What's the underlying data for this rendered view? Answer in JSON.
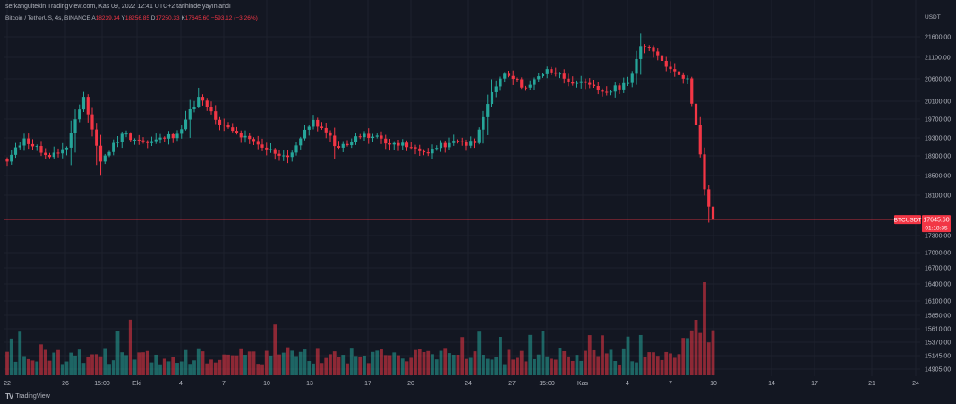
{
  "header": {
    "credit": "serkangultekin TradingView.com, Kas 09, 2022 12:41 UTC+2 tarihinde yayınlandı",
    "symbol_label": "Bitcoin / TetherUS, 4s, BINANCE",
    "ohlc": {
      "o_label": "A",
      "o": "18239.34",
      "h_label": "Y",
      "h": "18256.85",
      "l_label": "D",
      "l": "17250.33",
      "c_label": "K",
      "c": "17645.60",
      "change": "−593.12 (−3.26%)"
    }
  },
  "footer": {
    "logo_text": "TradingView",
    "logo_mark": "TV"
  },
  "colors": {
    "background": "#131722",
    "up": "#26a69a",
    "down": "#f23645",
    "grid": "#1e222d",
    "text": "#b2b5be",
    "price_line": "#f23645"
  },
  "chart_data": {
    "type": "candlestick",
    "symbol": "BTCUSDT",
    "currency": "USDT",
    "timeframe": "4s",
    "y_ticks": [
      "21600.00",
      "21100.00",
      "20600.00",
      "20100.00",
      "19700.00",
      "19300.00",
      "18900.00",
      "18500.00",
      "18100.00",
      "17300.00",
      "17000.00",
      "16700.00",
      "16400.00",
      "16100.00",
      "15850.00",
      "15610.00",
      "15370.00",
      "15145.00",
      "14905.00"
    ],
    "x_ticks": [
      "22",
      "26",
      "15:00",
      "Eki",
      "4",
      "7",
      "10",
      "13",
      "17",
      "20",
      "24",
      "27",
      "15:00",
      "Kas",
      "4",
      "7",
      "10",
      "14",
      "17",
      "21",
      "24"
    ],
    "price_label": {
      "symbol": "BTCUSDT",
      "price": "17645.60",
      "countdown": "01:18:35"
    },
    "key_points": [
      {
        "bar": 0,
        "price": 18900
      },
      {
        "bar": 4,
        "price": 19400
      },
      {
        "bar": 10,
        "price": 19000
      },
      {
        "bar": 14,
        "price": 19200
      },
      {
        "bar": 18,
        "price": 20300
      },
      {
        "bar": 22,
        "price": 18900
      },
      {
        "bar": 27,
        "price": 19500
      },
      {
        "bar": 33,
        "price": 19300
      },
      {
        "bar": 40,
        "price": 19500
      },
      {
        "bar": 45,
        "price": 20300
      },
      {
        "bar": 50,
        "price": 19700
      },
      {
        "bar": 60,
        "price": 19200
      },
      {
        "bar": 66,
        "price": 19000
      },
      {
        "bar": 72,
        "price": 19800
      },
      {
        "bar": 78,
        "price": 19200
      },
      {
        "bar": 84,
        "price": 19500
      },
      {
        "bar": 91,
        "price": 19300
      },
      {
        "bar": 98,
        "price": 19100
      },
      {
        "bar": 104,
        "price": 19300
      },
      {
        "bar": 110,
        "price": 19300
      },
      {
        "bar": 114,
        "price": 20400
      },
      {
        "bar": 117,
        "price": 20800
      },
      {
        "bar": 122,
        "price": 20500
      },
      {
        "bar": 127,
        "price": 20900
      },
      {
        "bar": 134,
        "price": 20600
      },
      {
        "bar": 141,
        "price": 20400
      },
      {
        "bar": 146,
        "price": 20600
      },
      {
        "bar": 149,
        "price": 21400
      },
      {
        "bar": 153,
        "price": 21200
      },
      {
        "bar": 156,
        "price": 20900
      },
      {
        "bar": 160,
        "price": 20700
      },
      {
        "bar": 162,
        "price": 19700
      },
      {
        "bar": 164,
        "price": 18300
      },
      {
        "bar": 166,
        "price": 17645
      }
    ]
  }
}
